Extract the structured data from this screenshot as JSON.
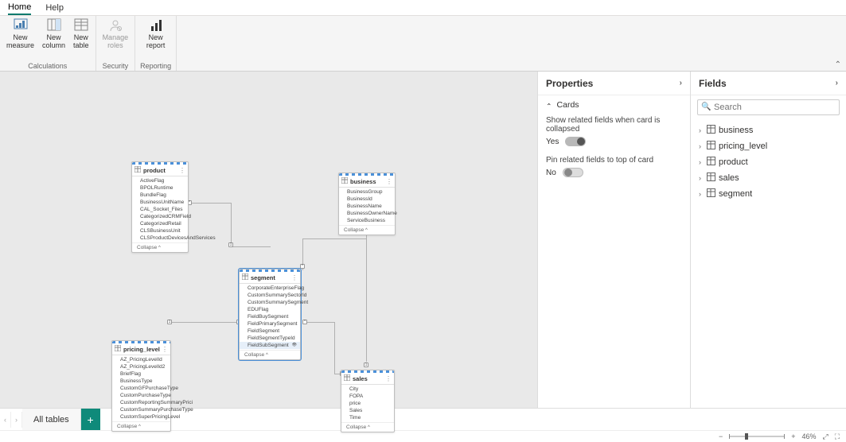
{
  "menubar": {
    "home": "Home",
    "help": "Help"
  },
  "ribbon": {
    "calc_label": "Calculations",
    "security_label": "Security",
    "reporting_label": "Reporting",
    "new_measure": "New\nmeasure",
    "new_column": "New\ncolumn",
    "new_table": "New\ntable",
    "manage_roles": "Manage\nroles",
    "new_report": "New\nreport"
  },
  "canvas": {
    "collapse_label": "Collapse",
    "cards": {
      "product": {
        "title": "product",
        "fields": [
          "ActiveFlag",
          "BPOLRuntime",
          "BundleFlag",
          "BusinessUnitName",
          "CAL_Socket_Files",
          "CategorizedCRMField",
          "CategorizedRetail",
          "CLSBusinessUnit",
          "CLSProductDevicesAndServices"
        ]
      },
      "business": {
        "title": "business",
        "fields": [
          "BusinessGroup",
          "BusinessId",
          "BusinessName",
          "BusinessOwnerName",
          "ServiceBusiness"
        ]
      },
      "segment": {
        "title": "segment",
        "fields": [
          "CorporateEnterpriseFlag",
          "CustomSummarySectorId",
          "CustomSummarySegment",
          "EDUFlag",
          "FieldBuySegment",
          "FieldPrimarySegment",
          "FieldSegment",
          "FieldSegmentTypeId",
          "FieldSubSegment"
        ]
      },
      "pricing_level": {
        "title": "pricing_level",
        "fields": [
          "AZ_PricingLevelId",
          "AZ_PricingLevelId2",
          "BriefFlag",
          "BusinessType",
          "CustomGFPurchaseType",
          "CustomPurchaseType",
          "CustomReportingSummaryPrici",
          "CustomSummaryPurchaseType",
          "CustomSuperPricingLevel"
        ]
      },
      "sales": {
        "title": "sales",
        "fields": [
          "City",
          "FOPA",
          "price",
          "Sales",
          "Time"
        ]
      }
    }
  },
  "properties": {
    "title": "Properties",
    "section": "Cards",
    "row1": "Show related fields when card is collapsed",
    "row1_val": "Yes",
    "row2": "Pin related fields to top of card",
    "row2_val": "No"
  },
  "fields": {
    "title": "Fields",
    "search_placeholder": "Search",
    "items": [
      "business",
      "pricing_level",
      "product",
      "sales",
      "segment"
    ]
  },
  "tabs": {
    "all": "All tables"
  },
  "status": {
    "zoom": "46%"
  },
  "colors": {
    "accent": "#0f8a7a"
  }
}
